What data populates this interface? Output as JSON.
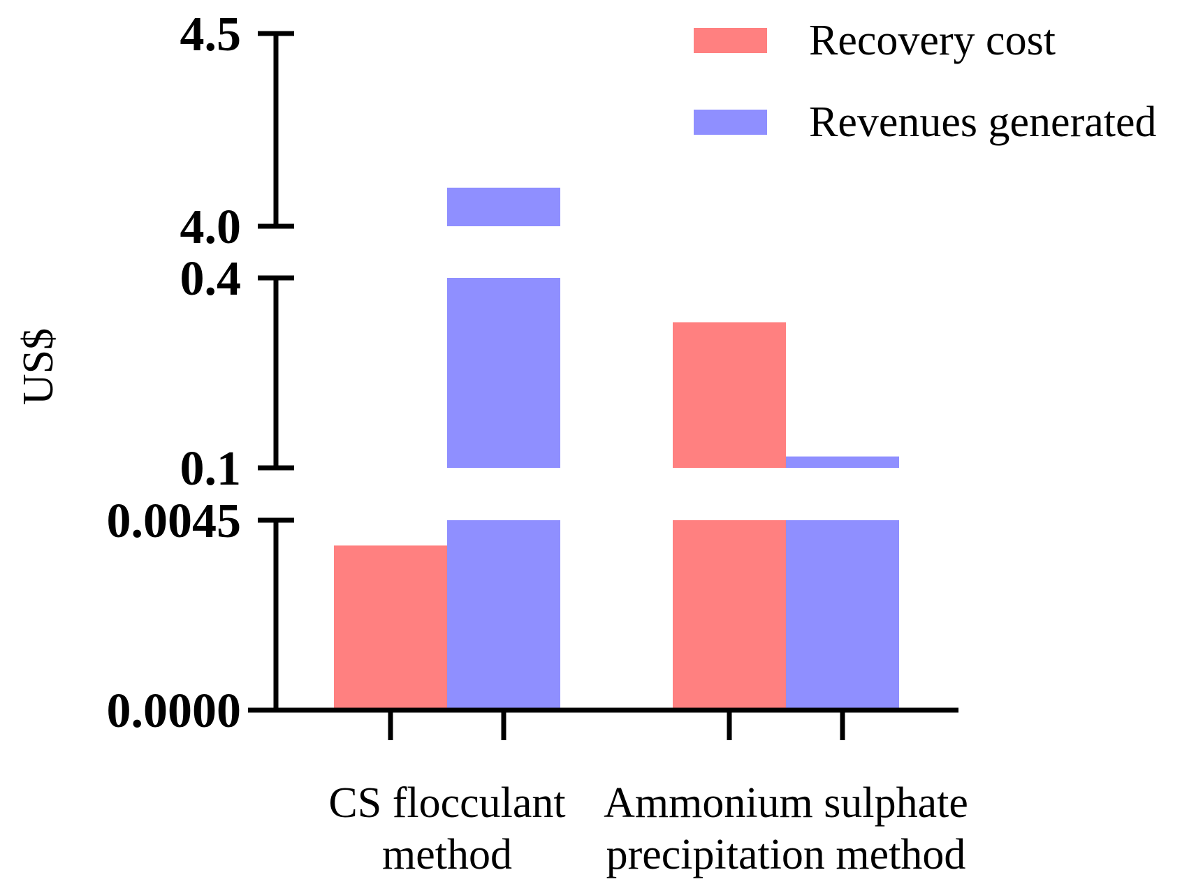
{
  "chart_data": {
    "type": "bar",
    "title": "",
    "xlabel": "",
    "ylabel": "US$",
    "y_axis": "broken",
    "y_segments": [
      {
        "ylim": [
          0.0,
          0.0045
        ],
        "ticks": [
          "0.0000",
          "0.0045"
        ]
      },
      {
        "ylim": [
          0.1,
          0.4
        ],
        "ticks": [
          "0.1",
          "0.4"
        ]
      },
      {
        "ylim": [
          4.0,
          4.5
        ],
        "ticks": [
          "4.0",
          "4.5"
        ]
      }
    ],
    "categories": [
      {
        "lines": [
          "CS flocculant",
          "method"
        ]
      },
      {
        "lines": [
          "Ammonium sulphate",
          "precipitation method"
        ]
      }
    ],
    "series": [
      {
        "name": "Recovery cost",
        "color": "#ff8080",
        "values": [
          0.0039,
          0.33
        ]
      },
      {
        "name": "Revenues generated",
        "color": "#8f8fff",
        "values": [
          4.1,
          0.118
        ]
      }
    ],
    "legend_position": "top-right"
  }
}
